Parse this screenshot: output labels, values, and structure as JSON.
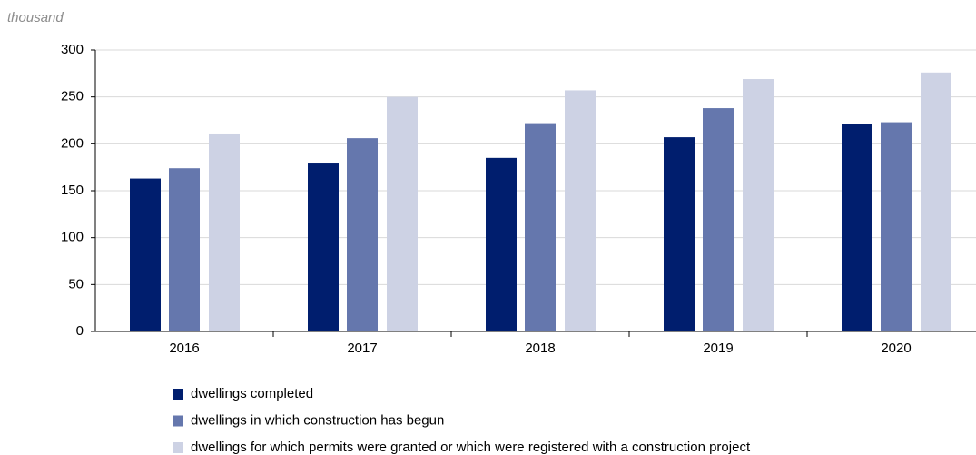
{
  "chart_data": {
    "type": "bar",
    "y_label": "thousand",
    "categories": [
      "2016",
      "2017",
      "2018",
      "2019",
      "2020"
    ],
    "series": [
      {
        "name": "dwellings completed",
        "color": "#001e6e",
        "values": [
          163,
          179,
          185,
          207,
          221
        ]
      },
      {
        "name": "dwellings in which construction has begun",
        "color": "#6577ad",
        "values": [
          174,
          206,
          222,
          238,
          223
        ]
      },
      {
        "name": "dwellings for which permits were granted or which were registered with a construction project",
        "color": "#cdd2e4",
        "values": [
          211,
          250,
          257,
          269,
          276
        ]
      }
    ],
    "ylim": [
      0,
      300
    ],
    "yticks": [
      0,
      50,
      100,
      150,
      200,
      250,
      300
    ],
    "grid": true,
    "legend": "bottom"
  }
}
